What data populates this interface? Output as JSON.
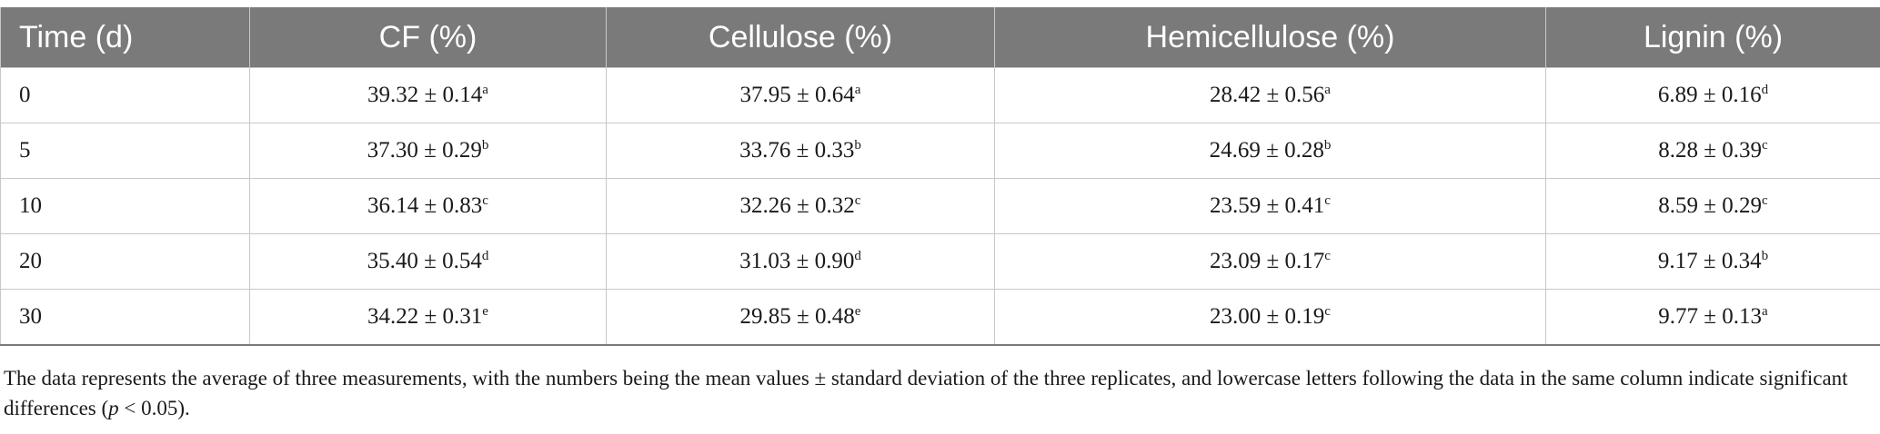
{
  "table": {
    "headers": [
      "Time (d)",
      "CF (%)",
      "Cellulose (%)",
      "Hemicellulose (%)",
      "Lignin (%)"
    ],
    "rows": [
      {
        "time": "0",
        "cells": [
          {
            "value": "39.32 ± 0.14",
            "sig": "a"
          },
          {
            "value": "37.95 ± 0.64",
            "sig": "a"
          },
          {
            "value": "28.42 ± 0.56",
            "sig": "a"
          },
          {
            "value": "6.89 ± 0.16",
            "sig": "d"
          }
        ]
      },
      {
        "time": "5",
        "cells": [
          {
            "value": "37.30 ± 0.29",
            "sig": "b"
          },
          {
            "value": "33.76 ± 0.33",
            "sig": "b"
          },
          {
            "value": "24.69 ± 0.28",
            "sig": "b"
          },
          {
            "value": "8.28 ± 0.39",
            "sig": "c"
          }
        ]
      },
      {
        "time": "10",
        "cells": [
          {
            "value": "36.14 ± 0.83",
            "sig": "c"
          },
          {
            "value": "32.26 ± 0.32",
            "sig": "c"
          },
          {
            "value": "23.59 ± 0.41",
            "sig": "c"
          },
          {
            "value": "8.59 ± 0.29",
            "sig": "c"
          }
        ]
      },
      {
        "time": "20",
        "cells": [
          {
            "value": "35.40 ± 0.54",
            "sig": "d"
          },
          {
            "value": "31.03 ± 0.90",
            "sig": "d"
          },
          {
            "value": "23.09 ± 0.17",
            "sig": "c"
          },
          {
            "value": "9.17 ± 0.34",
            "sig": "b"
          }
        ]
      },
      {
        "time": "30",
        "cells": [
          {
            "value": "34.22 ± 0.31",
            "sig": "e"
          },
          {
            "value": "29.85 ± 0.48",
            "sig": "e"
          },
          {
            "value": "23.00 ± 0.19",
            "sig": "c"
          },
          {
            "value": "9.77 ± 0.13",
            "sig": "a"
          }
        ]
      }
    ]
  },
  "footnote": {
    "before": "The data represents the average of three measurements, with the numbers being the mean values ± standard deviation of the three replicates, and lowercase letters following the data in the same column indicate significant differences (",
    "italic": "p",
    "after": " < 0.05)."
  },
  "colors": {
    "header_bg": "#7a7a7a",
    "header_text": "#ffffff",
    "grid": "#c8c8c8"
  }
}
